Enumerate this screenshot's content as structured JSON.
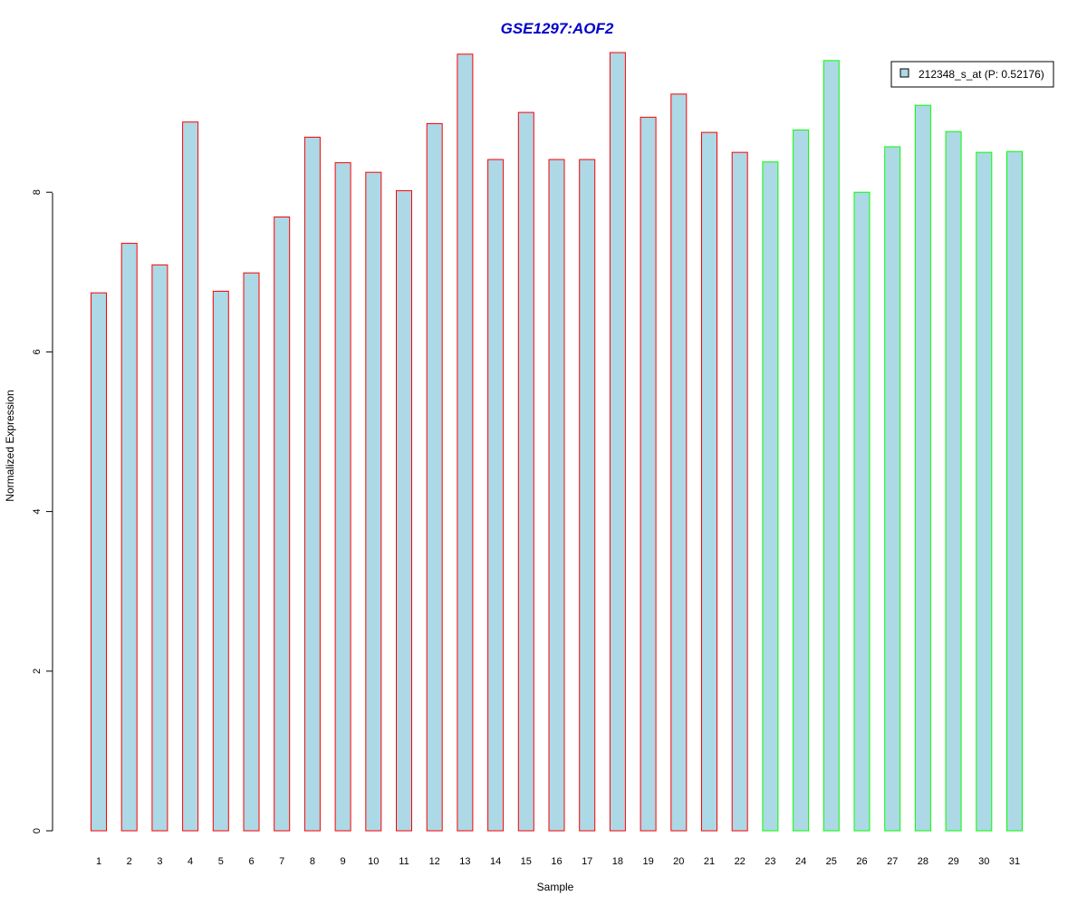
{
  "chart_data": {
    "type": "bar",
    "title": "GSE1297:AOF2",
    "xlabel": "Sample",
    "ylabel": "Normalized Expression",
    "categories": [
      "1",
      "2",
      "3",
      "4",
      "5",
      "6",
      "7",
      "8",
      "9",
      "10",
      "11",
      "12",
      "13",
      "14",
      "15",
      "16",
      "17",
      "18",
      "19",
      "20",
      "21",
      "22",
      "23",
      "24",
      "25",
      "26",
      "27",
      "28",
      "29",
      "30",
      "31"
    ],
    "series": [
      {
        "name": "212348_s_at (P: 0.52176)",
        "values": [
          6.74,
          7.36,
          7.09,
          8.88,
          6.76,
          6.99,
          7.69,
          8.69,
          8.37,
          8.25,
          8.02,
          8.86,
          9.73,
          8.41,
          9.0,
          8.41,
          8.41,
          9.75,
          8.94,
          9.23,
          8.75,
          8.5,
          8.38,
          8.78,
          9.65,
          8.0,
          8.57,
          9.09,
          8.76,
          8.5,
          8.51
        ]
      }
    ],
    "groups": [
      "red",
      "red",
      "red",
      "red",
      "red",
      "red",
      "red",
      "red",
      "red",
      "red",
      "red",
      "red",
      "red",
      "red",
      "red",
      "red",
      "red",
      "red",
      "red",
      "red",
      "red",
      "red",
      "green",
      "green",
      "green",
      "green",
      "green",
      "green",
      "green",
      "green",
      "green"
    ],
    "yticks": [
      "0",
      "2",
      "4",
      "6",
      "8"
    ],
    "ylim": [
      0,
      9.8
    ],
    "legend_position": "top-right",
    "grid": false,
    "colors": {
      "fill": "#add8e6",
      "red": "#ff0000",
      "green": "#00ff00",
      "title": "#0000cc"
    }
  }
}
